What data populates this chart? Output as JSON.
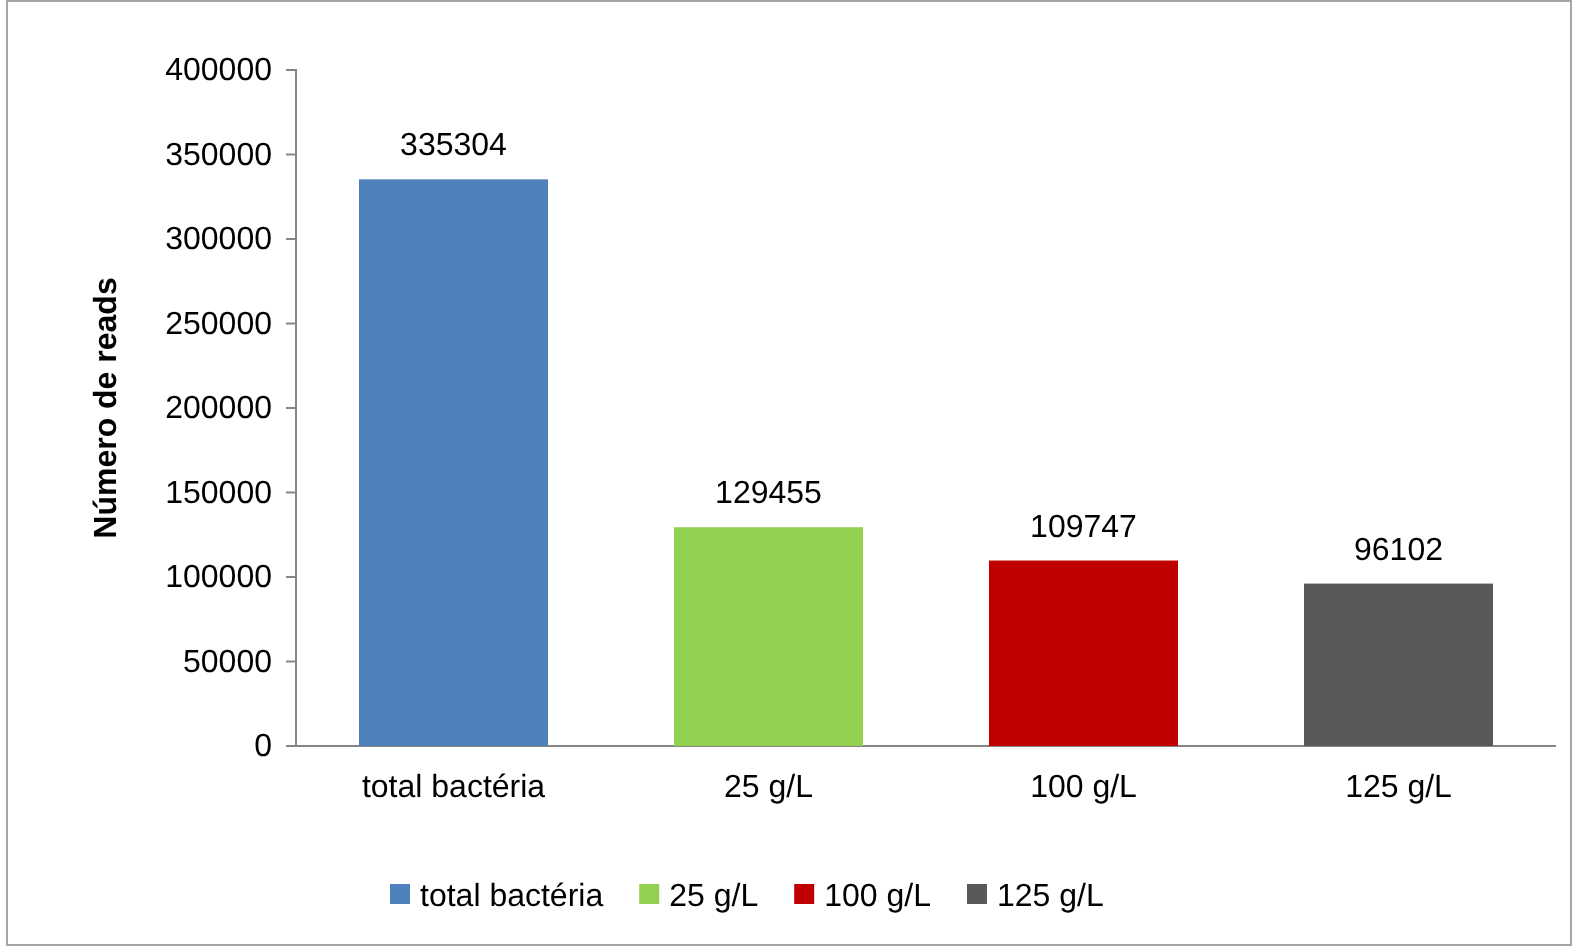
{
  "chart_data": {
    "type": "bar",
    "ylabel": "Número de reads",
    "categories": [
      "total bactéria",
      "25 g/L",
      "100 g/L",
      "125 g/L"
    ],
    "series": [
      {
        "name": "total bactéria",
        "color": "#4f81bd",
        "values": [
          335304,
          null,
          null,
          null
        ]
      },
      {
        "name": "25 g/L",
        "color": "#92d050",
        "values": [
          null,
          129455,
          null,
          null
        ]
      },
      {
        "name": "100 g/L",
        "color": "#c00000",
        "values": [
          null,
          null,
          109747,
          null
        ]
      },
      {
        "name": "125 g/L",
        "color": "#595959",
        "values": [
          null,
          null,
          null,
          96102
        ]
      }
    ],
    "ylim": [
      0,
      400000
    ],
    "yticks": [
      0,
      50000,
      100000,
      150000,
      200000,
      250000,
      300000,
      350000,
      400000
    ],
    "grid": false,
    "data_labels": true,
    "legend": "bottom"
  }
}
